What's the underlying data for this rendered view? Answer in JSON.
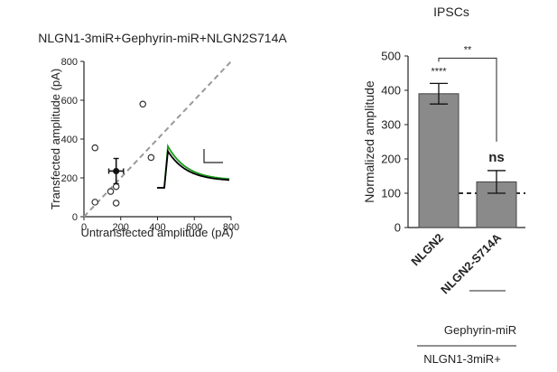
{
  "chart_data": [
    {
      "type": "scatter",
      "title": "NLGN1-3miR+Gephyrin-miR+NLGN2S714A",
      "xlabel": "Untransfected amplitude (pA)",
      "ylabel": "Transfected amplitude (pA)",
      "xlim": [
        0,
        800
      ],
      "ylim": [
        0,
        800
      ],
      "xticks": [
        "0",
        "200",
        "400",
        "600",
        "800"
      ],
      "yticks": [
        "0",
        "200",
        "400",
        "600",
        "800"
      ],
      "points": [
        {
          "x": 60,
          "y": 355
        },
        {
          "x": 60,
          "y": 75
        },
        {
          "x": 145,
          "y": 130
        },
        {
          "x": 175,
          "y": 155
        },
        {
          "x": 175,
          "y": 70
        },
        {
          "x": 320,
          "y": 580
        },
        {
          "x": 365,
          "y": 305
        }
      ],
      "mean": {
        "x": 175,
        "y": 235,
        "x_err": 40,
        "y_err": 65
      },
      "identity_line": true,
      "inset_traces": [
        {
          "name": "transfected",
          "color": "#1a9a1a",
          "peak": 1.0
        },
        {
          "name": "untransfected",
          "color": "#000000",
          "peak": 0.88
        }
      ]
    },
    {
      "type": "bar",
      "title": "IPSCs",
      "ylabel": "Normalized amplitude",
      "ylim": [
        0,
        500
      ],
      "yticks": [
        "0",
        "100",
        "200",
        "300",
        "400",
        "500"
      ],
      "categories": [
        "NLGN2",
        "NLGN2-S714A"
      ],
      "values": [
        390,
        133
      ],
      "errors": [
        30,
        33
      ],
      "bar_labels": [
        "****",
        "ns"
      ],
      "comparison": {
        "label": "**"
      },
      "reference_line": 100,
      "bar_color": "#8a8a8a"
    }
  ],
  "conditions": [
    {
      "label": "Gephyrin-miR"
    },
    {
      "label": "NLGN1-3miR+"
    }
  ]
}
